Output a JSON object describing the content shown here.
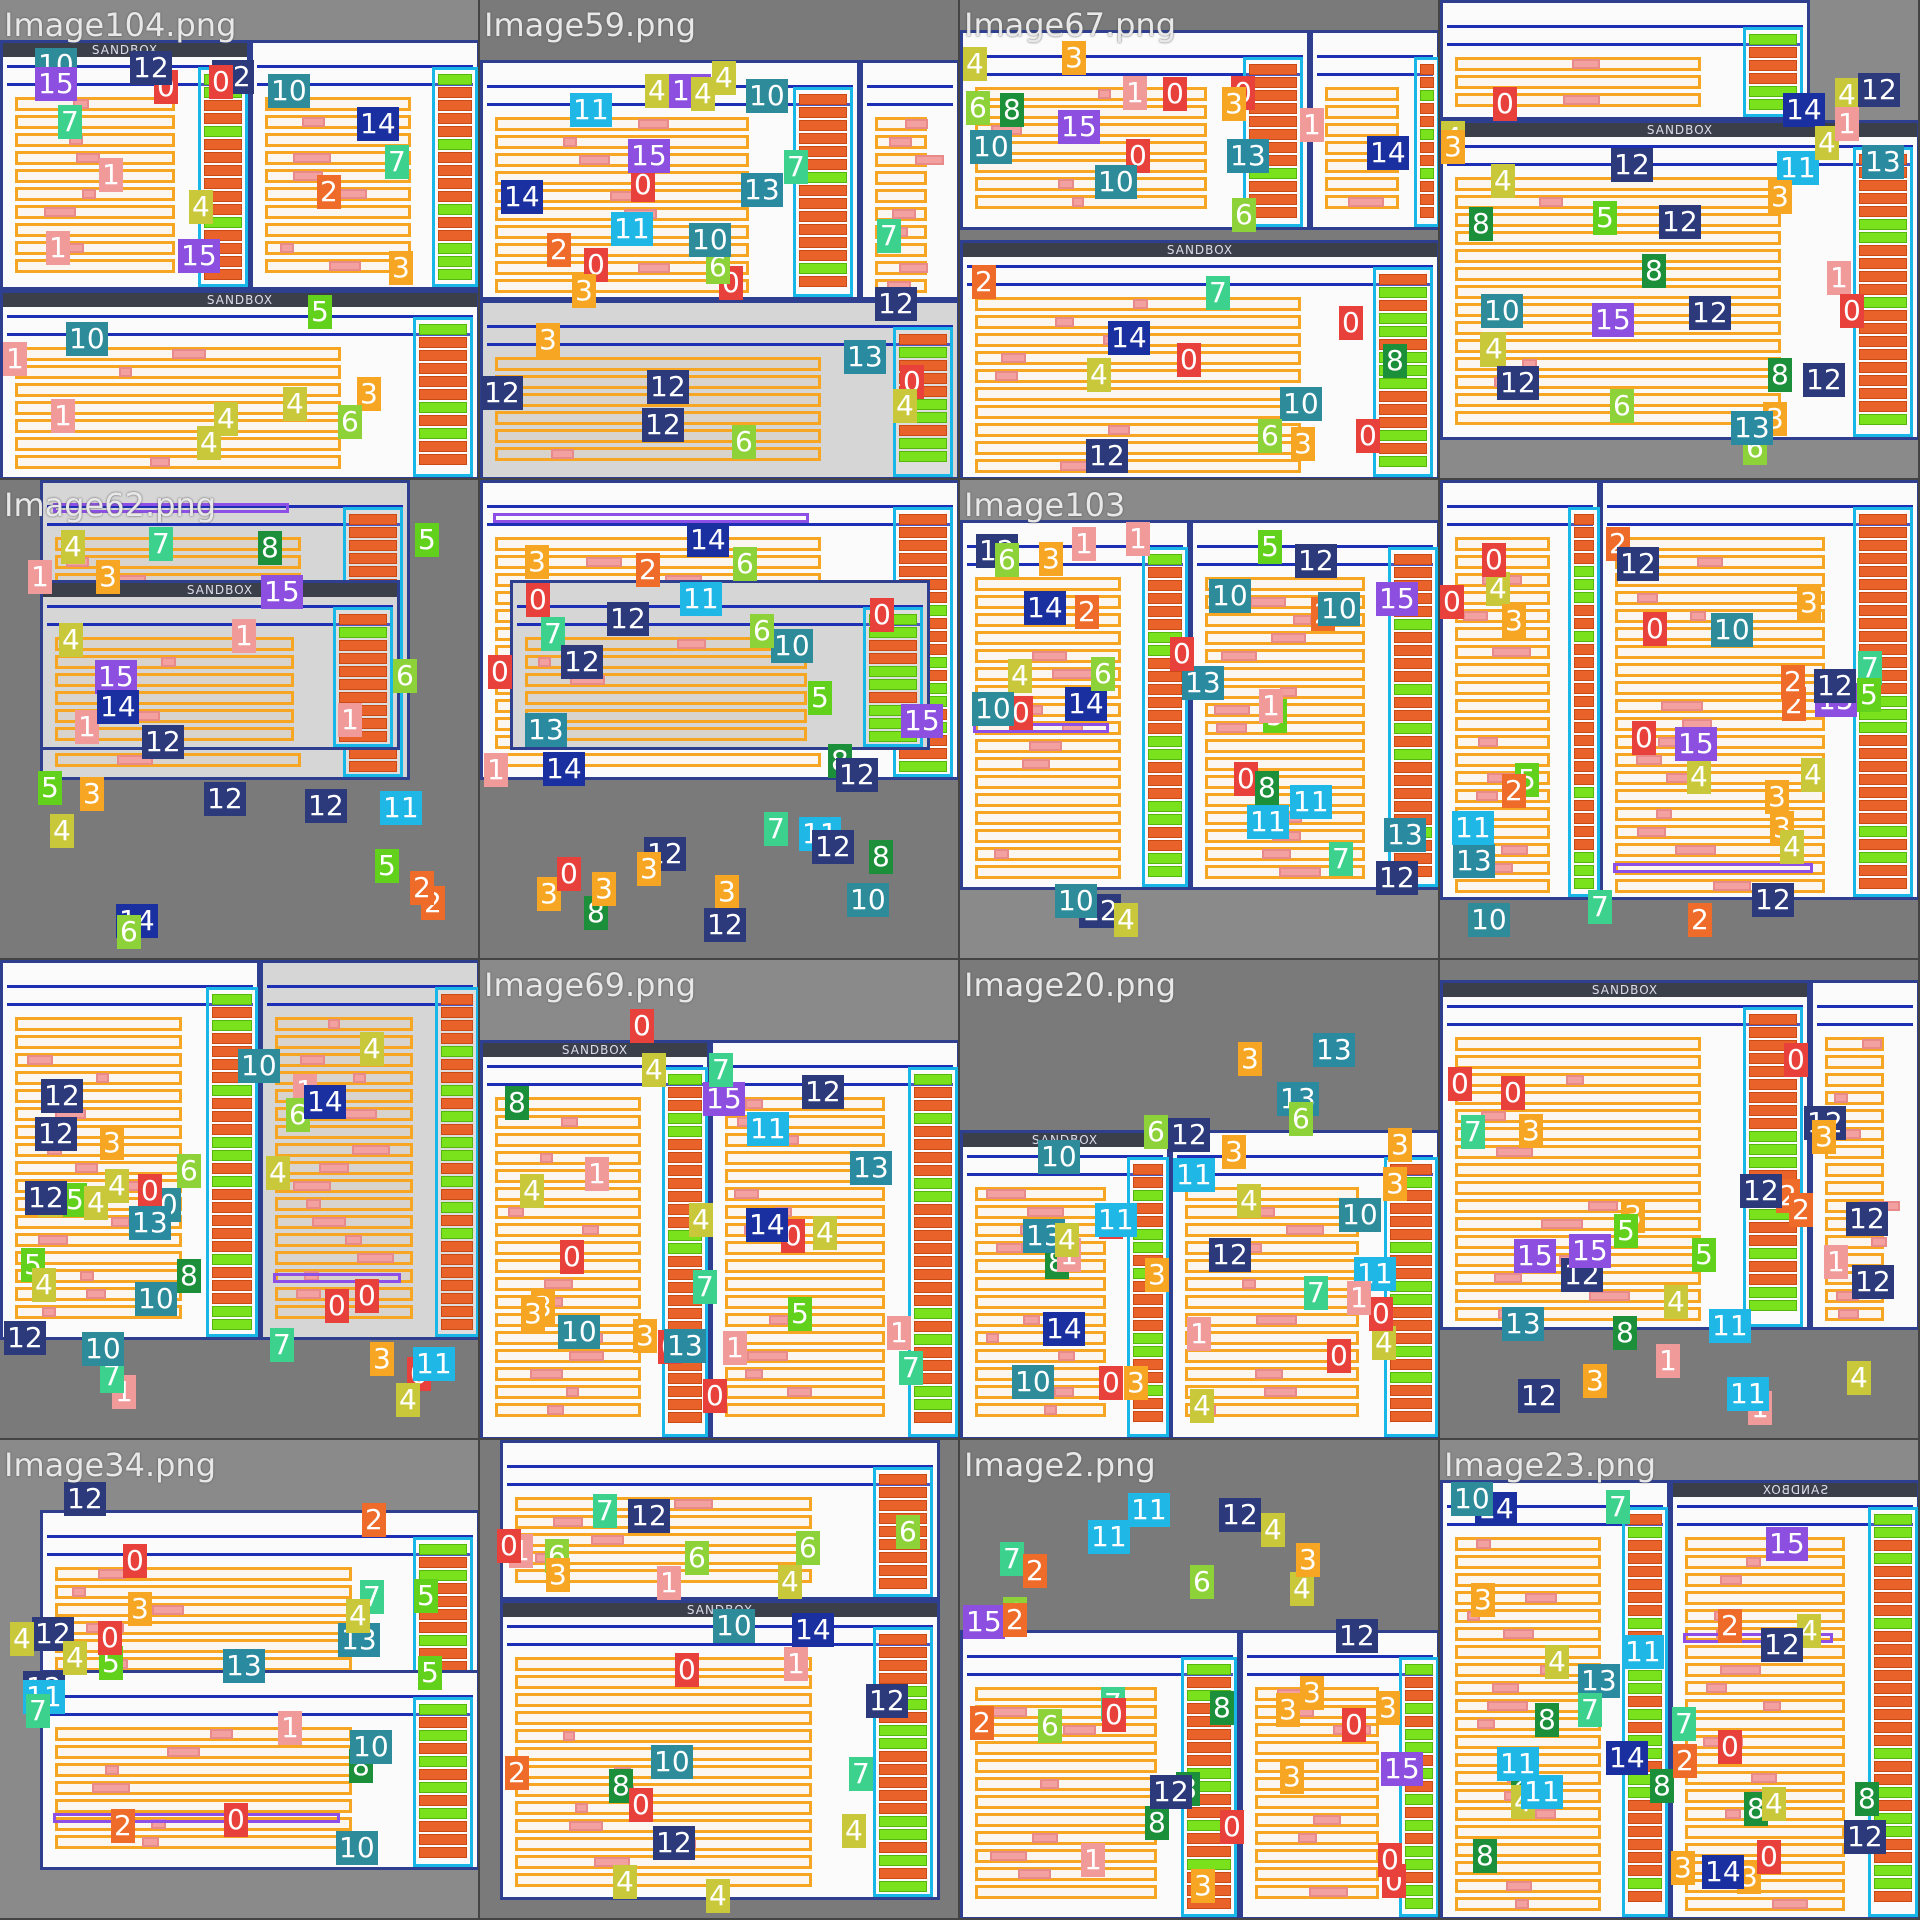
{
  "tiles": [
    {
      "label": "Image104.png",
      "col": 0,
      "row": 0
    },
    {
      "label": "Image59.png",
      "col": 1,
      "row": 0
    },
    {
      "label": "Image67.png",
      "col": 2,
      "row": 0
    },
    {
      "label": "",
      "col": 3,
      "row": 0
    },
    {
      "label": "Image62.png",
      "col": 0,
      "row": 1
    },
    {
      "label": "",
      "col": 1,
      "row": 1
    },
    {
      "label": "Image103",
      "col": 2,
      "row": 1
    },
    {
      "label": "",
      "col": 3,
      "row": 1
    },
    {
      "label": "",
      "col": 0,
      "row": 2
    },
    {
      "label": "Image69.png",
      "col": 1,
      "row": 2
    },
    {
      "label": "Image20.png",
      "col": 2,
      "row": 2
    },
    {
      "label": "",
      "col": 3,
      "row": 2
    },
    {
      "label": "Image34.png",
      "col": 0,
      "row": 3
    },
    {
      "label": "",
      "col": 1,
      "row": 3
    },
    {
      "label": "Image2.png",
      "col": 2,
      "row": 3
    },
    {
      "label": "Image23.png",
      "col": 3,
      "row": 3
    }
  ],
  "sandbox_label": "SANDBOX",
  "sandbox_label_mirrored": "SANDBOX",
  "badge_colors": {
    "10": "#2e8b9a",
    "11": "#1fb7e6",
    "12": "#2c3a7c",
    "13": "#2a8aa0",
    "14": "#1a2fa0",
    "15": "#8c4fe0",
    "0": "#e8413c",
    "1": "#f09a9a",
    "2": "#ef6b2a",
    "3": "#f6a623",
    "4": "#c8c83a",
    "5": "#62d11c",
    "6": "#8ed23a",
    "7": "#3cd28e",
    "8": "#1c8f3a",
    "9": "#21c4b0"
  }
}
